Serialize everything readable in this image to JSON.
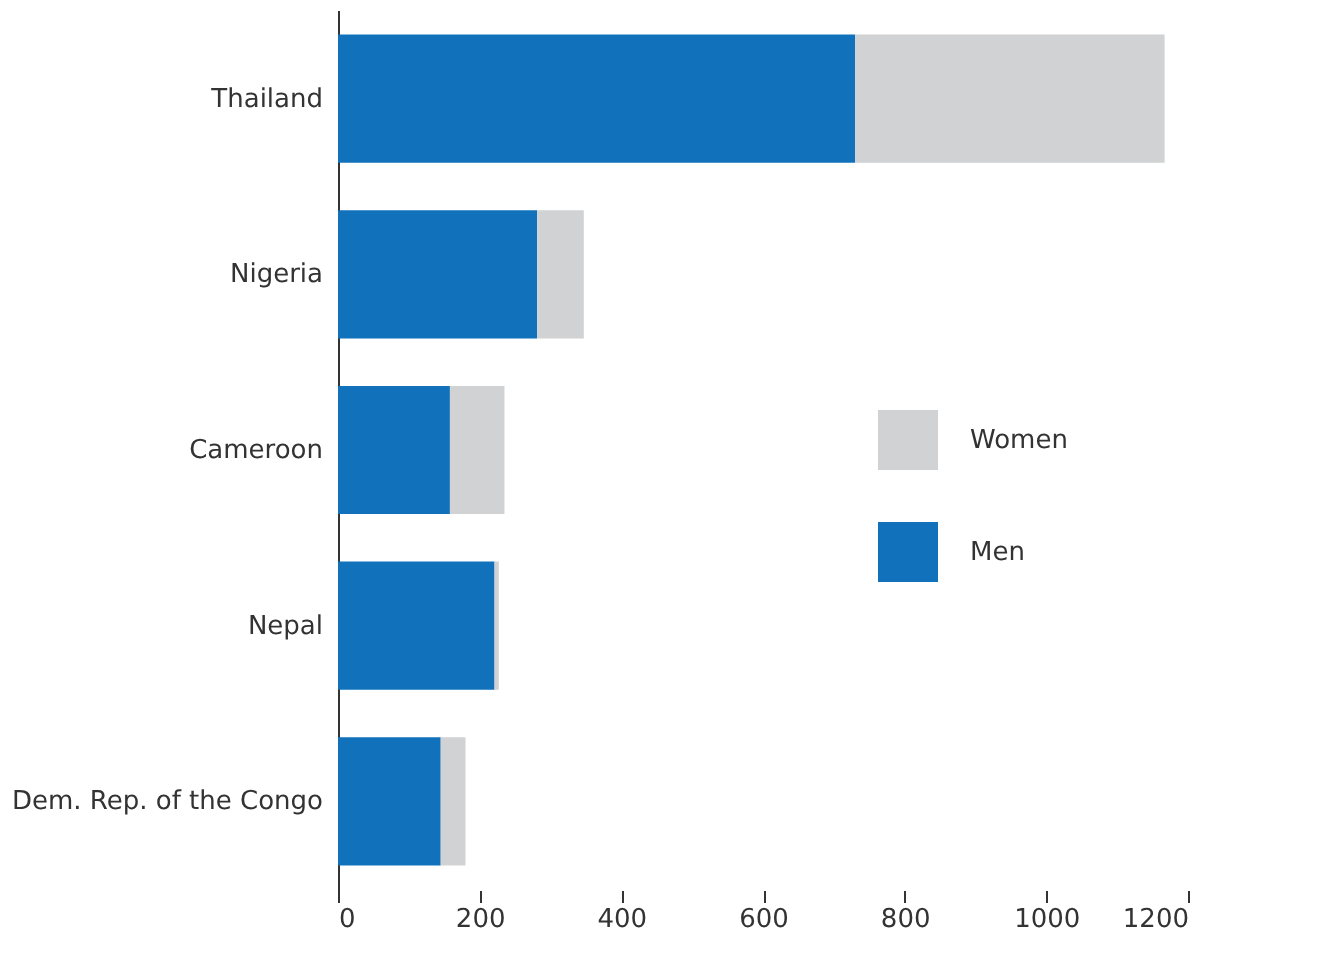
{
  "chart_data": {
    "type": "bar",
    "orientation": "horizontal",
    "stacked": true,
    "categories": [
      "Thailand",
      "Nigeria",
      "Cameroon",
      "Nepal",
      "Dem. Rep. of the Congo"
    ],
    "series": [
      {
        "name": "Men",
        "color": "#1172bb",
        "values": [
          730,
          281,
          158,
          221,
          145
        ]
      },
      {
        "name": "Women",
        "color": "#d1d2d4",
        "values": [
          437,
          66,
          77,
          6,
          35
        ]
      }
    ],
    "xlim": [
      0,
      1200
    ],
    "xticks": [
      0,
      200,
      400,
      600,
      800,
      1000,
      1200
    ],
    "grid": false,
    "legend": "right"
  }
}
